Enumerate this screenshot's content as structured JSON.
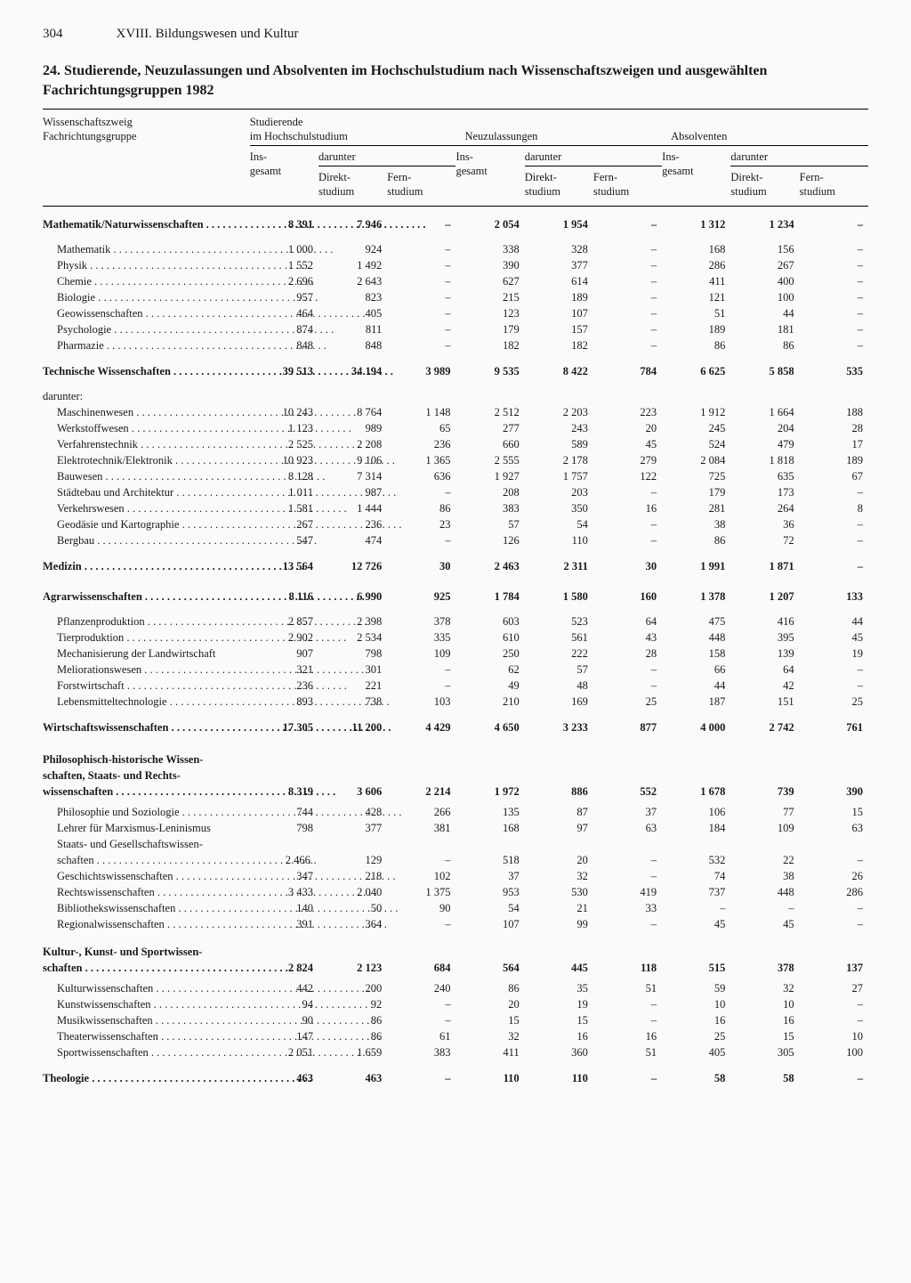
{
  "page_number": "304",
  "chapter": "XVIII. Bildungswesen und Kultur",
  "title": "24. Studierende, Neuzulassungen und Absolventen im Hochschulstudium nach Wissenschaftszweigen und ausgewählten Fachrichtungsgruppen 1982",
  "col_label_1": "Wissenschaftszweig",
  "col_label_2": "Fachrichtungsgruppe",
  "group_studierende": "Studierende",
  "group_studierende_2": "im Hochschulstudium",
  "group_neuzul": "Neuzulassungen",
  "group_absolv": "Absolventen",
  "sub_insgesamt_1": "Ins-",
  "sub_insgesamt_2": "gesamt",
  "sub_darunter": "darunter",
  "sub_direkt_1": "Direkt-",
  "sub_direkt_2": "studium",
  "sub_fern_1": "Fern-",
  "sub_fern_2": "studium",
  "darunter_label": "darunter:",
  "dash": "–",
  "sections": [
    {
      "key": "math",
      "label": "Mathematik/Naturwissenschaften",
      "vals": [
        "8 391",
        "7 946",
        "–",
        "2 054",
        "1 954",
        "–",
        "1 312",
        "1 234",
        "–"
      ],
      "rows": [
        {
          "label": "Mathematik",
          "vals": [
            "1 000",
            "924",
            "–",
            "338",
            "328",
            "–",
            "168",
            "156",
            "–"
          ]
        },
        {
          "label": "Physik",
          "vals": [
            "1 552",
            "1 492",
            "–",
            "390",
            "377",
            "–",
            "286",
            "267",
            "–"
          ]
        },
        {
          "label": "Chemie",
          "vals": [
            "2 696",
            "2 643",
            "–",
            "627",
            "614",
            "–",
            "411",
            "400",
            "–"
          ]
        },
        {
          "label": "Biologie",
          "vals": [
            "957",
            "823",
            "–",
            "215",
            "189",
            "–",
            "121",
            "100",
            "–"
          ]
        },
        {
          "label": "Geowissenschaften",
          "vals": [
            "464",
            "405",
            "–",
            "123",
            "107",
            "–",
            "51",
            "44",
            "–"
          ]
        },
        {
          "label": "Psychologie",
          "vals": [
            "874",
            "811",
            "–",
            "179",
            "157",
            "–",
            "189",
            "181",
            "–"
          ]
        },
        {
          "label": "Pharmazie",
          "vals": [
            "848",
            "848",
            "–",
            "182",
            "182",
            "–",
            "86",
            "86",
            "–"
          ]
        }
      ]
    },
    {
      "key": "tech",
      "label": "Technische Wissenschaften",
      "vals": [
        "39 513",
        "34 194",
        "3 989",
        "9 535",
        "8 422",
        "784",
        "6 625",
        "5 858",
        "535"
      ],
      "darunter": true,
      "rows": [
        {
          "label": "Maschinenwesen",
          "vals": [
            "10 243",
            "8 764",
            "1 148",
            "2 512",
            "2 203",
            "223",
            "1 912",
            "1 664",
            "188"
          ]
        },
        {
          "label": "Werkstoffwesen",
          "vals": [
            "1 123",
            "989",
            "65",
            "277",
            "243",
            "20",
            "245",
            "204",
            "28"
          ]
        },
        {
          "label": "Verfahrenstechnik",
          "vals": [
            "2 525",
            "2 208",
            "236",
            "660",
            "589",
            "45",
            "524",
            "479",
            "17"
          ]
        },
        {
          "label": "Elektrotechnik/Elektronik",
          "vals": [
            "10 923",
            "9 106",
            "1 365",
            "2 555",
            "2 178",
            "279",
            "2 084",
            "1 818",
            "189"
          ]
        },
        {
          "label": "Bauwesen",
          "vals": [
            "8 128",
            "7 314",
            "636",
            "1 927",
            "1 757",
            "122",
            "725",
            "635",
            "67"
          ]
        },
        {
          "label": "Städtebau und Architektur",
          "vals": [
            "1 011",
            "987",
            "–",
            "208",
            "203",
            "–",
            "179",
            "173",
            "–"
          ]
        },
        {
          "label": "Verkehrswesen",
          "vals": [
            "1 581",
            "1 444",
            "86",
            "383",
            "350",
            "16",
            "281",
            "264",
            "8"
          ]
        },
        {
          "label": "Geodäsie und Kartographie",
          "vals": [
            "267",
            "236",
            "23",
            "57",
            "54",
            "–",
            "38",
            "36",
            "–"
          ]
        },
        {
          "label": "Bergbau",
          "vals": [
            "547",
            "474",
            "–",
            "126",
            "110",
            "–",
            "86",
            "72",
            "–"
          ]
        }
      ]
    },
    {
      "key": "med",
      "label": "Medizin",
      "vals": [
        "13 564",
        "12 726",
        "30",
        "2 463",
        "2 311",
        "30",
        "1 991",
        "1 871",
        "–"
      ],
      "rows": []
    },
    {
      "key": "agrar",
      "label": "Agrarwissenschaften",
      "vals": [
        "8 116",
        "6 990",
        "925",
        "1 784",
        "1 580",
        "160",
        "1 378",
        "1 207",
        "133"
      ],
      "rows": [
        {
          "label": "Pflanzenproduktion",
          "vals": [
            "2 857",
            "2 398",
            "378",
            "603",
            "523",
            "64",
            "475",
            "416",
            "44"
          ]
        },
        {
          "label": "Tierproduktion",
          "vals": [
            "2 902",
            "2 534",
            "335",
            "610",
            "561",
            "43",
            "448",
            "395",
            "45"
          ]
        },
        {
          "label": "Mechanisierung der Landwirtschaft",
          "vals": [
            "907",
            "798",
            "109",
            "250",
            "222",
            "28",
            "158",
            "139",
            "19"
          ],
          "nodots": true
        },
        {
          "label": "Meliorationswesen",
          "vals": [
            "321",
            "301",
            "–",
            "62",
            "57",
            "–",
            "66",
            "64",
            "–"
          ]
        },
        {
          "label": "Forstwirtschaft",
          "vals": [
            "236",
            "221",
            "–",
            "49",
            "48",
            "–",
            "44",
            "42",
            "–"
          ]
        },
        {
          "label": "Lebensmitteltechnologie",
          "vals": [
            "893",
            "738",
            "103",
            "210",
            "169",
            "25",
            "187",
            "151",
            "25"
          ]
        }
      ]
    },
    {
      "key": "wirt",
      "label": "Wirtschaftswissenschaften",
      "vals": [
        "17 305",
        "11 200",
        "4 429",
        "4 650",
        "3 233",
        "877",
        "4 000",
        "2 742",
        "761"
      ],
      "rows": []
    },
    {
      "key": "phil",
      "label_lines": [
        "Philosophisch-historische Wissen-",
        "schaften, Staats- und Rechts-",
        "wissenschaften"
      ],
      "vals": [
        "8 319",
        "3 606",
        "2 214",
        "1 972",
        "886",
        "552",
        "1 678",
        "739",
        "390"
      ],
      "rows": [
        {
          "label": "Philosophie und Soziologie",
          "vals": [
            "744",
            "428",
            "266",
            "135",
            "87",
            "37",
            "106",
            "77",
            "15"
          ]
        },
        {
          "label": "Lehrer für Marxismus-Leninismus",
          "vals": [
            "798",
            "377",
            "381",
            "168",
            "97",
            "63",
            "184",
            "109",
            "63"
          ],
          "nodots": true
        },
        {
          "label_lines": [
            "Staats- und Gesellschaftswissen-",
            "schaften"
          ],
          "vals": [
            "2 466.",
            "129",
            "–",
            "518",
            "20",
            "–",
            "532",
            "22",
            "–"
          ]
        },
        {
          "label": "Geschichtswissenschaften",
          "vals": [
            "347",
            "218",
            "102",
            "37",
            "32",
            "–",
            "74",
            "38",
            "26"
          ]
        },
        {
          "label": "Rechtswissenschaften",
          "vals": [
            "3 433",
            "2 040",
            "1 375",
            "953",
            "530",
            "419",
            "737",
            "448",
            "286"
          ]
        },
        {
          "label": "Bibliothekswissenschaften",
          "vals": [
            "140",
            "50",
            "90",
            "54",
            "21",
            "33",
            "–",
            "–",
            "–"
          ]
        },
        {
          "label": "Regionalwissenschaften",
          "vals": [
            "391",
            "364",
            "–",
            "107",
            "99",
            "–",
            "45",
            "45",
            "–"
          ]
        }
      ]
    },
    {
      "key": "kultur",
      "label_lines": [
        "Kultur-, Kunst- und Sportwissen-",
        "schaften"
      ],
      "vals": [
        "2 824",
        "2 123",
        "684",
        "564",
        "445",
        "118",
        "515",
        "378",
        "137"
      ],
      "rows": [
        {
          "label": "Kulturwissenschaften",
          "vals": [
            "442",
            "200",
            "240",
            "86",
            "35",
            "51",
            "59",
            "32",
            "27"
          ]
        },
        {
          "label": "Kunstwissenschaften",
          "vals": [
            "94",
            "92",
            "–",
            "20",
            "19",
            "–",
            "10",
            "10",
            "–"
          ]
        },
        {
          "label": "Musikwissenschaften",
          "vals": [
            "90",
            "86",
            "–",
            "15",
            "15",
            "–",
            "16",
            "16",
            "–"
          ]
        },
        {
          "label": "Theaterwissenschaften",
          "vals": [
            "147",
            "86",
            "61",
            "32",
            "16",
            "16",
            "25",
            "15",
            "10"
          ]
        },
        {
          "label": "Sportwissenschaften",
          "vals": [
            "2 051",
            "1 659",
            "383",
            "411",
            "360",
            "51",
            "405",
            "305",
            "100"
          ]
        }
      ]
    },
    {
      "key": "theo",
      "label": "Theologie",
      "vals": [
        "463",
        "463",
        "–",
        "110",
        "110",
        "–",
        "58",
        "58",
        "–"
      ],
      "rows": []
    }
  ]
}
